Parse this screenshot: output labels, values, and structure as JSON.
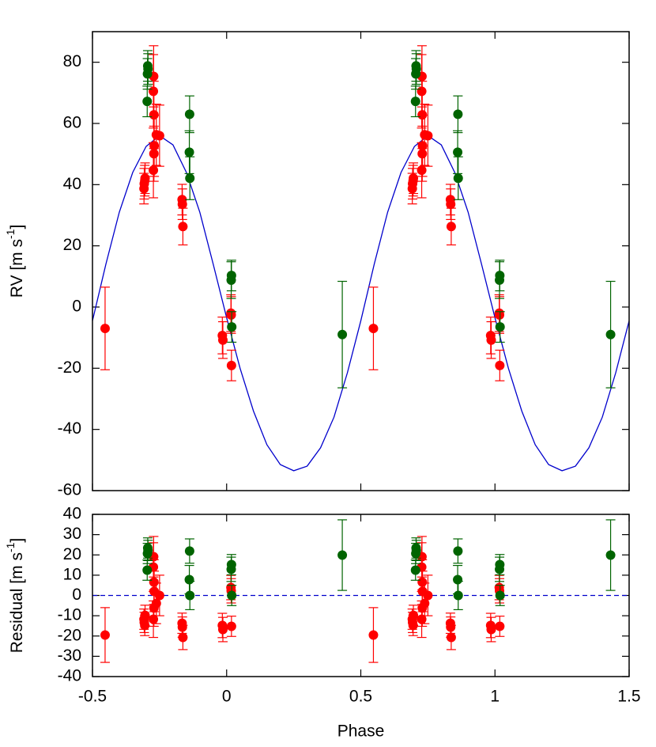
{
  "chart_data": [
    {
      "type": "scatter",
      "ylabel": "RV [m s",
      "ylabel_sup": "-1",
      "ylabel_end": "]",
      "xlim": [
        -0.5,
        1.5
      ],
      "ylim": [
        -60,
        90
      ],
      "xticks": [
        -0.5,
        0,
        0.5,
        1,
        1.5
      ],
      "yticks": [
        -60,
        -40,
        -20,
        0,
        20,
        40,
        60,
        80
      ],
      "series": [
        {
          "color": "#0000cc",
          "x": [
            -0.5,
            -0.45,
            -0.4,
            -0.35,
            -0.3,
            -0.25,
            -0.2,
            -0.15,
            -0.1,
            -0.05,
            0,
            0.05,
            0.1,
            0.15,
            0.2,
            0.25,
            0.3,
            0.35,
            0.4,
            0.45,
            0.5,
            0.55,
            0.6,
            0.65,
            0.7,
            0.75,
            0.8,
            0.85,
            0.9,
            0.95,
            1,
            1.05,
            1.1,
            1.15,
            1.2,
            1.25,
            1.3,
            1.35,
            1.4,
            1.45,
            1.5
          ],
          "values": [
            -4.5,
            14,
            31,
            44,
            52.5,
            56,
            53,
            44,
            31,
            14,
            -3.5,
            -20,
            -34,
            -45,
            -51.5,
            -53.5,
            -52,
            -46,
            -36,
            -21.5,
            -4.5,
            14,
            31,
            44,
            52.5,
            56,
            53,
            44,
            31,
            14,
            -3.5,
            -20,
            -34,
            -45,
            -51.5,
            -53.5,
            -52,
            -46,
            -36,
            -21.5,
            -4.5
          ]
        },
        {
          "color": "#ff0000",
          "x": [
            -0.453,
            -0.308,
            -0.307,
            -0.305,
            -0.304,
            -0.272,
            -0.273,
            -0.271,
            -0.262,
            -0.27,
            -0.271,
            -0.273,
            -0.25,
            -0.166,
            -0.165,
            -0.163,
            -0.016,
            -0.014,
            0.016,
            0.017,
            0.018,
            0.547,
            0.692,
            0.693,
            0.695,
            0.696,
            0.728,
            0.727,
            0.729,
            0.738,
            0.73,
            0.729,
            0.727,
            0.75,
            0.834,
            0.835,
            0.837,
            0.984,
            0.986,
            1.016,
            1.017,
            1.018
          ],
          "values": [
            -7,
            38.7,
            40.3,
            41.3,
            42.1,
            75.4,
            70.5,
            62.8,
            56.3,
            52.7,
            50.1,
            44.7,
            56,
            35.1,
            33.6,
            26.3,
            -9.3,
            -10.8,
            -2,
            -2.6,
            -19.1,
            -7,
            38.7,
            40.3,
            41.3,
            42.1,
            75.4,
            70.5,
            62.8,
            56.3,
            52.7,
            50.1,
            44.7,
            56,
            35.1,
            33.6,
            26.3,
            -9.3,
            -10.8,
            -2,
            -2.6,
            -19.1
          ],
          "errors": [
            13.5,
            5,
            5,
            5,
            5,
            10,
            12,
            11,
            10,
            10,
            9,
            9,
            10,
            5,
            5,
            6,
            6,
            6,
            6,
            6,
            5,
            13.5,
            5,
            5,
            5,
            5,
            10,
            12,
            11,
            10,
            10,
            9,
            9,
            10,
            5,
            5,
            6,
            6,
            6,
            6,
            6,
            5
          ]
        },
        {
          "color": "#006400",
          "x": [
            -0.294,
            -0.293,
            -0.295,
            -0.296,
            -0.138,
            -0.139,
            -0.137,
            0.018,
            0.017,
            0.019,
            0.431,
            0.706,
            0.707,
            0.705,
            0.704,
            0.862,
            0.861,
            0.863,
            1.018,
            1.017,
            1.019,
            1.431
          ],
          "values": [
            78.8,
            77.8,
            76.2,
            67.2,
            63,
            50.6,
            42.1,
            10.3,
            8.8,
            -6.5,
            -9,
            78.8,
            77.8,
            76.2,
            67.2,
            63,
            50.6,
            42.1,
            10.3,
            8.8,
            -6.5,
            -9
          ],
          "errors": [
            5,
            5,
            5,
            5,
            6,
            7,
            7,
            5,
            6,
            5,
            17.4,
            5,
            5,
            5,
            5,
            6,
            7,
            7,
            5,
            6,
            5,
            17.4
          ]
        }
      ]
    },
    {
      "type": "scatter",
      "ylabel": "Residual [m s",
      "ylabel_sup": "-1",
      "ylabel_end": "]",
      "xlabel": "Phase",
      "xlim": [
        -0.5,
        1.5
      ],
      "ylim": [
        -40,
        40
      ],
      "xticks": [
        -0.5,
        0,
        0.5,
        1,
        1.5
      ],
      "yticks": [
        -40,
        -30,
        -20,
        -10,
        0,
        10,
        20,
        30,
        40
      ],
      "hline": {
        "value": 0,
        "color": "#0000cc"
      },
      "series": [
        {
          "color": "#ff0000",
          "x": [
            -0.453,
            -0.308,
            -0.307,
            -0.305,
            -0.304,
            -0.272,
            -0.273,
            -0.271,
            -0.262,
            -0.27,
            -0.271,
            -0.273,
            -0.25,
            -0.166,
            -0.165,
            -0.163,
            -0.016,
            -0.014,
            0.016,
            0.017,
            0.018,
            0.547,
            0.692,
            0.693,
            0.695,
            0.696,
            0.728,
            0.727,
            0.729,
            0.738,
            0.73,
            0.729,
            0.727,
            0.75,
            0.834,
            0.835,
            0.837,
            0.984,
            0.986,
            1.016,
            1.017,
            1.018
          ],
          "values": [
            -19.5,
            -11.7,
            -13.3,
            -14.8,
            -9.8,
            19.1,
            14,
            6.6,
            -3.9,
            2,
            -6.2,
            -11.7,
            0,
            -13.7,
            -15.6,
            -20.7,
            -14.8,
            -16.8,
            3.9,
            2.3,
            -15.2,
            -19.5,
            -11.7,
            -13.3,
            -14.8,
            -9.8,
            19.1,
            14,
            6.6,
            -3.9,
            2,
            -6.2,
            -11.7,
            0,
            -13.7,
            -15.6,
            -20.7,
            -14.8,
            -16.8,
            3.9,
            2.3,
            -15.2
          ],
          "errors": [
            13.5,
            5,
            5,
            5,
            5,
            10,
            12,
            11,
            10,
            10,
            9,
            9,
            10,
            5,
            5,
            6,
            6,
            6,
            6,
            6,
            5,
            13.5,
            5,
            5,
            5,
            5,
            10,
            12,
            11,
            10,
            10,
            9,
            9,
            10,
            5,
            5,
            6,
            6,
            6,
            6,
            6,
            5
          ]
        },
        {
          "color": "#006400",
          "x": [
            -0.294,
            -0.293,
            -0.295,
            -0.296,
            -0.138,
            -0.139,
            -0.137,
            0.018,
            0.017,
            0.019,
            0.431,
            0.706,
            0.707,
            0.705,
            0.704,
            0.862,
            0.861,
            0.863,
            1.018,
            1.017,
            1.019,
            1.431
          ],
          "values": [
            23.4,
            22.2,
            20.7,
            12.5,
            21.9,
            7.8,
            0,
            15.2,
            12.9,
            0,
            19.9,
            23.4,
            22.2,
            20.7,
            12.5,
            21.9,
            7.8,
            0,
            15.2,
            12.9,
            0,
            19.9
          ],
          "errors": [
            5,
            5,
            5,
            5,
            6,
            7,
            7,
            5,
            6,
            5,
            17.4,
            5,
            5,
            5,
            5,
            6,
            7,
            7,
            5,
            6,
            5,
            17.4
          ]
        }
      ]
    }
  ]
}
